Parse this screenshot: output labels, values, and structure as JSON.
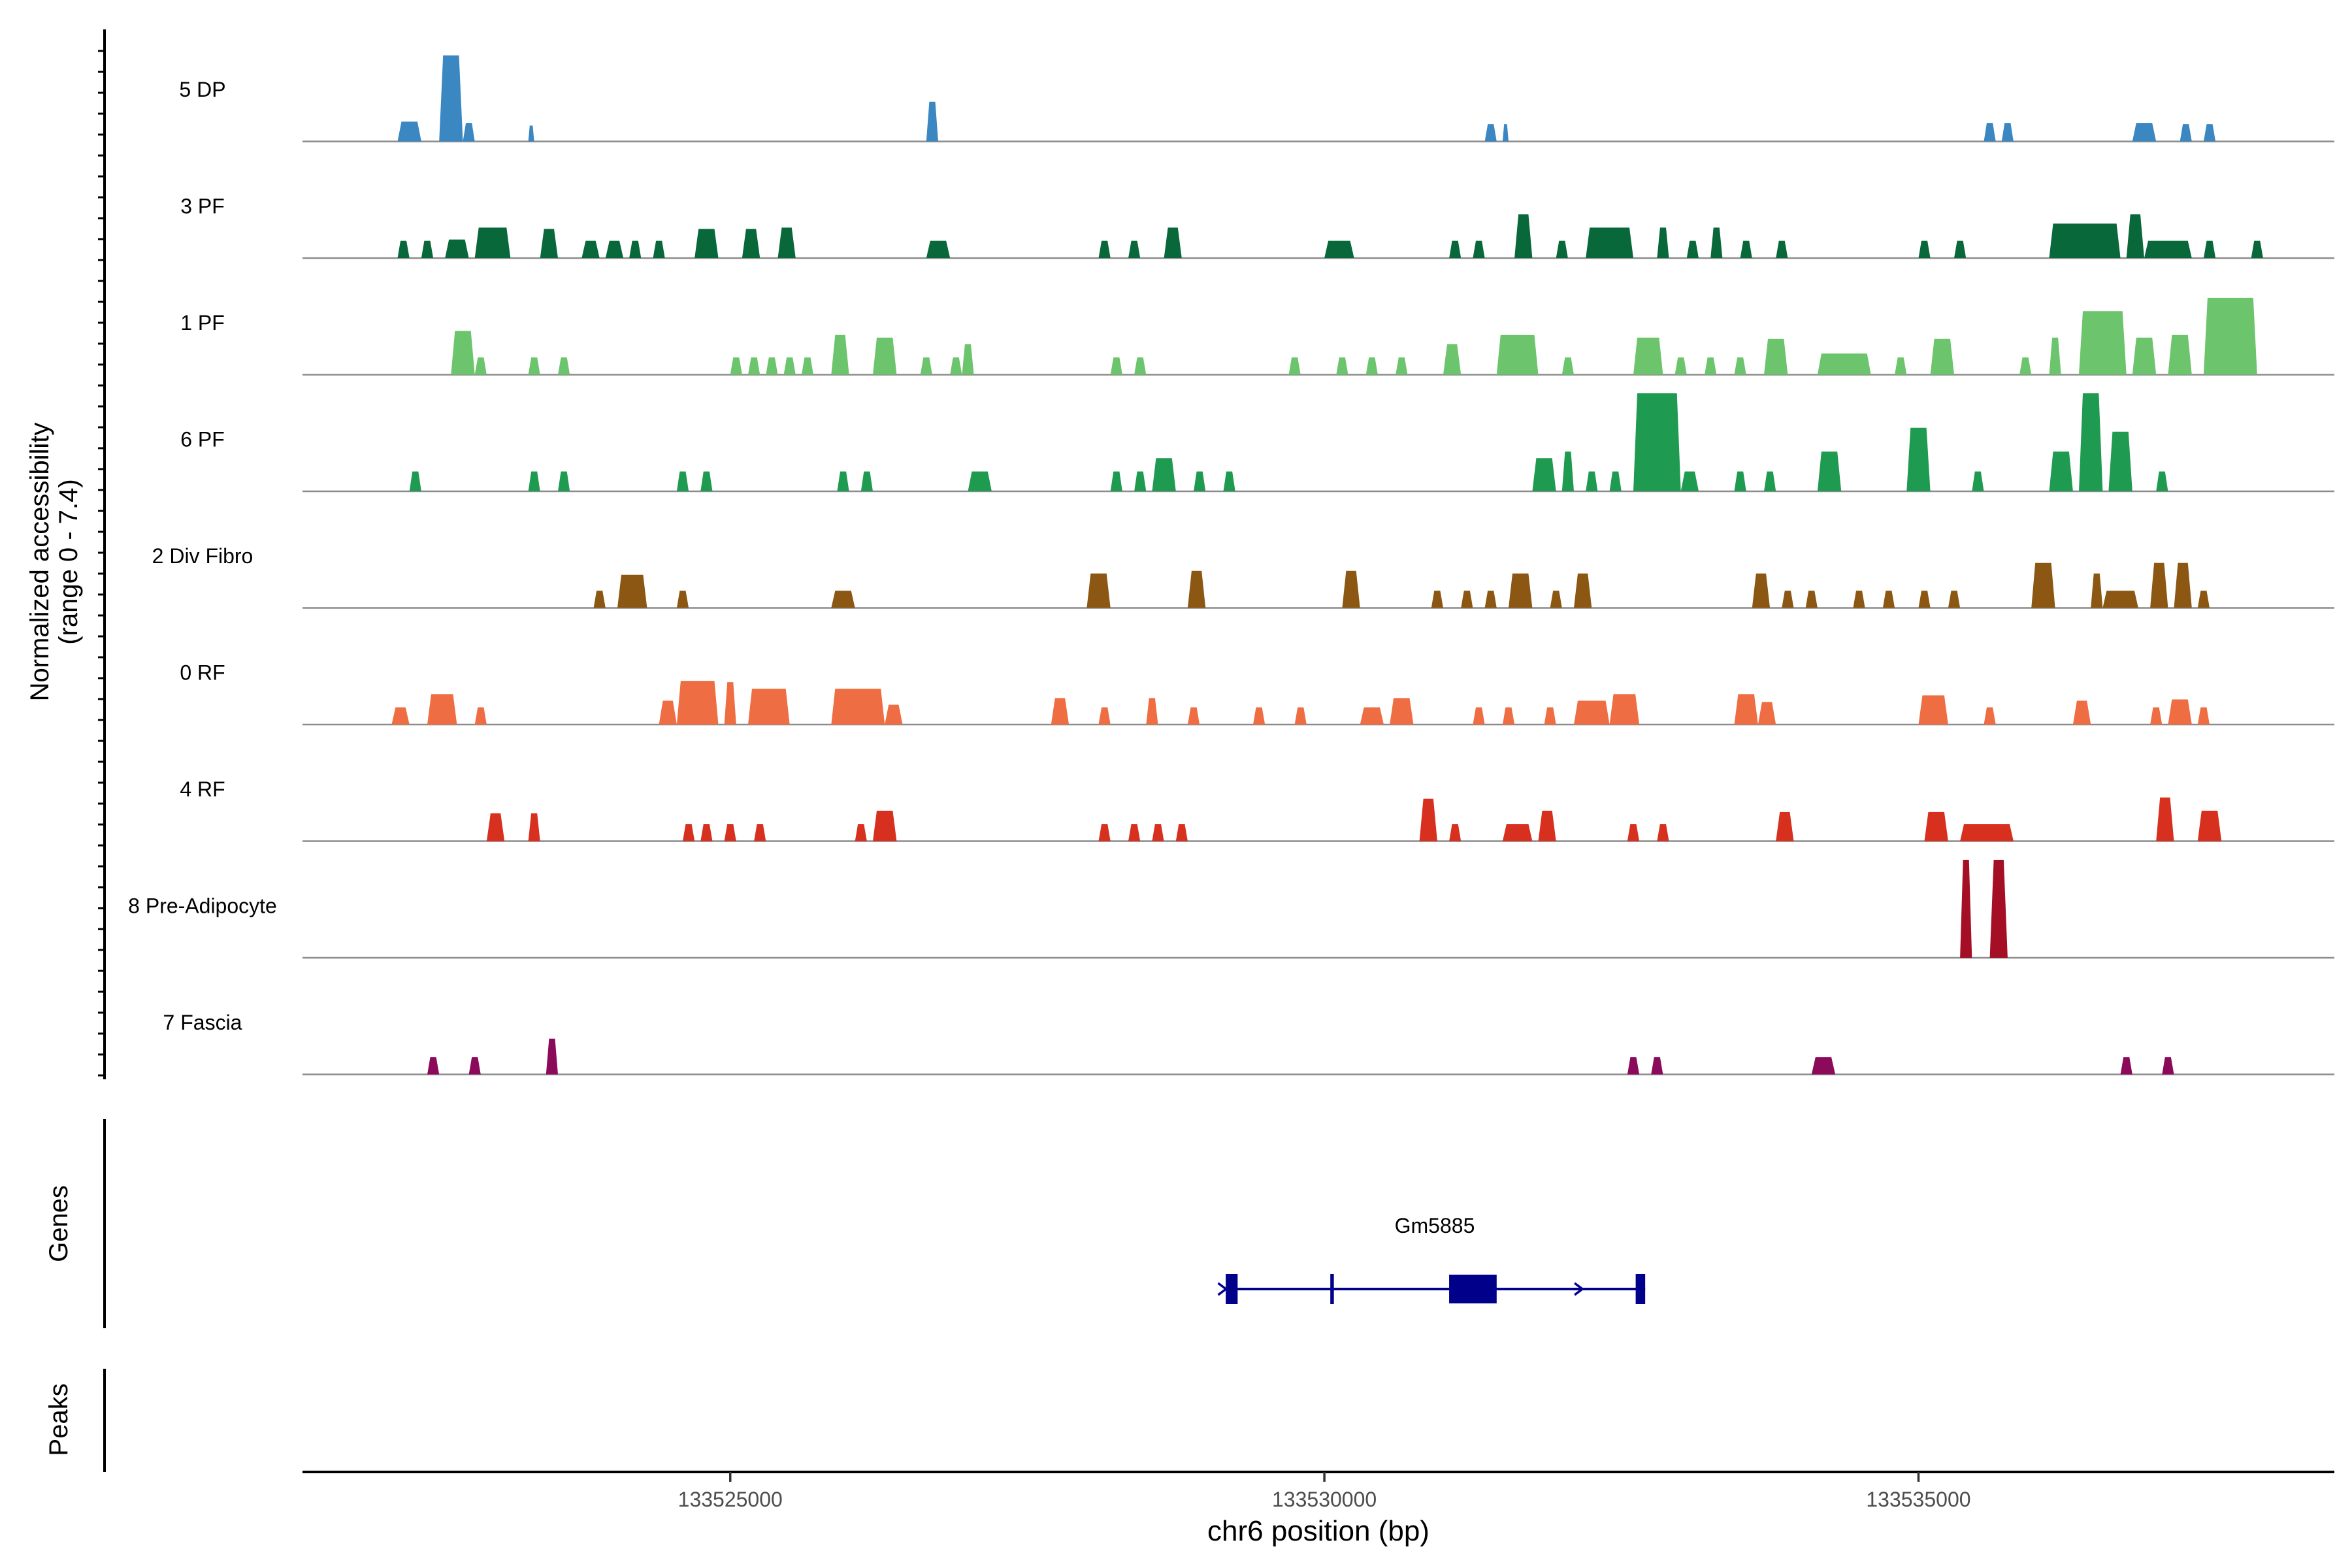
{
  "chart_data": {
    "type": "area",
    "title": "",
    "ylabel_line1": "Normalized accessibility",
    "ylabel_line2": "(range 0 - 7.4)",
    "xlabel": "chr6 position (bp)",
    "xlim": [
      133521400,
      133538500
    ],
    "x_ticks": [
      133525000,
      133530000,
      133535000
    ],
    "x_tick_labels": [
      "133525000",
      "133530000",
      "133535000"
    ],
    "ylim": [
      0,
      7.4
    ],
    "genes_label": "Genes",
    "peaks_label": "Peaks",
    "gene": {
      "name": "Gm5885",
      "color": "#00008B",
      "start": 133529170,
      "end": 133532700,
      "exons": [
        [
          133529170,
          133529270
        ],
        [
          133530050,
          133530080
        ],
        [
          133531050,
          133531450
        ],
        [
          133532620,
          133532700
        ]
      ],
      "arrows": [
        133529150,
        133532150
      ]
    },
    "series": [
      {
        "name": "5 DP",
        "color": "#3A87C1",
        "peaks": [
          [
            133522200,
            133522400,
            1.5
          ],
          [
            133522550,
            133522750,
            6.5
          ],
          [
            133522750,
            133522850,
            1.4
          ],
          [
            133523300,
            133523350,
            1.2
          ],
          [
            133526650,
            133526750,
            3.0
          ],
          [
            133531350,
            133531450,
            1.3
          ],
          [
            133531500,
            133531550,
            1.3
          ],
          [
            133535550,
            133535650,
            1.4
          ],
          [
            133535700,
            133535800,
            1.4
          ],
          [
            133536800,
            133537000,
            1.4
          ],
          [
            133537200,
            133537300,
            1.3
          ],
          [
            133537400,
            133537500,
            1.3
          ]
        ]
      },
      {
        "name": "3 PF",
        "color": "#08683A",
        "peaks": [
          [
            133522200,
            133522300,
            1.3
          ],
          [
            133522400,
            133522500,
            1.3
          ],
          [
            133522600,
            133522800,
            1.4
          ],
          [
            133522850,
            133523150,
            2.3
          ],
          [
            133523400,
            133523550,
            2.2
          ],
          [
            133523750,
            133523900,
            1.3
          ],
          [
            133523950,
            133524100,
            1.3
          ],
          [
            133524150,
            133524250,
            1.3
          ],
          [
            133524350,
            133524450,
            1.3
          ],
          [
            133524700,
            133524900,
            2.2
          ],
          [
            133525100,
            133525250,
            2.2
          ],
          [
            133525400,
            133525550,
            2.3
          ],
          [
            133526650,
            133526850,
            1.3
          ],
          [
            133528100,
            133528200,
            1.3
          ],
          [
            133528350,
            133528450,
            1.3
          ],
          [
            133528650,
            133528800,
            2.3
          ],
          [
            133530000,
            133530250,
            1.3
          ],
          [
            133531050,
            133531150,
            1.3
          ],
          [
            133531250,
            133531350,
            1.3
          ],
          [
            133531600,
            133531750,
            3.3
          ],
          [
            133531950,
            133532050,
            1.3
          ],
          [
            133532200,
            133532600,
            2.3
          ],
          [
            133532800,
            133532900,
            2.3
          ],
          [
            133533050,
            133533150,
            1.3
          ],
          [
            133533250,
            133533350,
            2.3
          ],
          [
            133533500,
            133533600,
            1.3
          ],
          [
            133533800,
            133533900,
            1.3
          ],
          [
            133535000,
            133535100,
            1.3
          ],
          [
            133535300,
            133535400,
            1.3
          ],
          [
            133536100,
            133536700,
            2.6
          ],
          [
            133536750,
            133536900,
            3.3
          ],
          [
            133536900,
            133537300,
            1.3
          ],
          [
            133537400,
            133537500,
            1.3
          ],
          [
            133537800,
            133537900,
            1.3
          ]
        ]
      },
      {
        "name": "1 PF",
        "color": "#6CC46C",
        "peaks": [
          [
            133522650,
            133522850,
            3.3
          ],
          [
            133522850,
            133522950,
            1.3
          ],
          [
            133523300,
            133523400,
            1.3
          ],
          [
            133523550,
            133523650,
            1.3
          ],
          [
            133525000,
            133525100,
            1.3
          ],
          [
            133525150,
            133525250,
            1.3
          ],
          [
            133525300,
            133525400,
            1.3
          ],
          [
            133525450,
            133525550,
            1.3
          ],
          [
            133525600,
            133525700,
            1.3
          ],
          [
            133525850,
            133526000,
            3.0
          ],
          [
            133526200,
            133526400,
            2.8
          ],
          [
            133526600,
            133526700,
            1.3
          ],
          [
            133526850,
            133526950,
            1.3
          ],
          [
            133526950,
            133527050,
            2.3
          ],
          [
            133528200,
            133528300,
            1.3
          ],
          [
            133528400,
            133528500,
            1.3
          ],
          [
            133529700,
            133529800,
            1.3
          ],
          [
            133530100,
            133530200,
            1.3
          ],
          [
            133530350,
            133530450,
            1.3
          ],
          [
            133530600,
            133530700,
            1.3
          ],
          [
            133531000,
            133531150,
            2.3
          ],
          [
            133531450,
            133531800,
            3.0
          ],
          [
            133532000,
            133532100,
            1.3
          ],
          [
            133532600,
            133532850,
            2.8
          ],
          [
            133532950,
            133533050,
            1.3
          ],
          [
            133533200,
            133533300,
            1.3
          ],
          [
            133533450,
            133533550,
            1.3
          ],
          [
            133533700,
            133533900,
            2.7
          ],
          [
            133534150,
            133534600,
            1.6
          ],
          [
            133534800,
            133534900,
            1.3
          ],
          [
            133535100,
            133535300,
            2.7
          ],
          [
            133535850,
            133535950,
            1.3
          ],
          [
            133536100,
            133536200,
            2.8
          ],
          [
            133536350,
            133536750,
            4.8
          ],
          [
            133536800,
            133537000,
            2.8
          ],
          [
            133537100,
            133537300,
            3.0
          ],
          [
            133537400,
            133537850,
            5.8
          ]
        ]
      },
      {
        "name": "6 PF",
        "color": "#1E9B50",
        "peaks": [
          [
            133522300,
            133522400,
            1.5
          ],
          [
            133523300,
            133523400,
            1.5
          ],
          [
            133523550,
            133523650,
            1.5
          ],
          [
            133524550,
            133524650,
            1.5
          ],
          [
            133524750,
            133524850,
            1.5
          ],
          [
            133525900,
            133526000,
            1.5
          ],
          [
            133526100,
            133526200,
            1.5
          ],
          [
            133527000,
            133527200,
            1.5
          ],
          [
            133528200,
            133528300,
            1.5
          ],
          [
            133528400,
            133528500,
            1.5
          ],
          [
            133528550,
            133528750,
            2.5
          ],
          [
            133528900,
            133529000,
            1.5
          ],
          [
            133529150,
            133529250,
            1.5
          ],
          [
            133531750,
            133531950,
            2.5
          ],
          [
            133532000,
            133532100,
            3.0
          ],
          [
            133532200,
            133532300,
            1.5
          ],
          [
            133532400,
            133532500,
            1.5
          ],
          [
            133532600,
            133533000,
            7.4
          ],
          [
            133533000,
            133533150,
            1.5
          ],
          [
            133533450,
            133533550,
            1.5
          ],
          [
            133533700,
            133533800,
            1.5
          ],
          [
            133534150,
            133534350,
            3.0
          ],
          [
            133534900,
            133535100,
            4.8
          ],
          [
            133535450,
            133535550,
            1.5
          ],
          [
            133536100,
            133536300,
            3.0
          ],
          [
            133536350,
            133536550,
            7.4
          ],
          [
            133536600,
            133536800,
            4.5
          ],
          [
            133537000,
            133537100,
            1.5
          ]
        ]
      },
      {
        "name": "2 Div Fibro",
        "color": "#8B5713",
        "peaks": [
          [
            133523850,
            133523950,
            1.3
          ],
          [
            133524050,
            133524300,
            2.5
          ],
          [
            133524550,
            133524650,
            1.3
          ],
          [
            133525850,
            133526050,
            1.3
          ],
          [
            133528000,
            133528200,
            2.6
          ],
          [
            133528850,
            133529000,
            2.8
          ],
          [
            133530150,
            133530300,
            2.8
          ],
          [
            133530900,
            133531000,
            1.3
          ],
          [
            133531150,
            133531250,
            1.3
          ],
          [
            133531350,
            133531450,
            1.3
          ],
          [
            133531550,
            133531750,
            2.6
          ],
          [
            133531900,
            133532000,
            1.3
          ],
          [
            133532100,
            133532250,
            2.6
          ],
          [
            133533600,
            133533750,
            2.6
          ],
          [
            133533850,
            133533950,
            1.3
          ],
          [
            133534050,
            133534150,
            1.3
          ],
          [
            133534450,
            133534550,
            1.3
          ],
          [
            133534700,
            133534800,
            1.3
          ],
          [
            133535000,
            133535100,
            1.3
          ],
          [
            133535250,
            133535350,
            1.3
          ],
          [
            133535950,
            133536150,
            3.4
          ],
          [
            133536450,
            133536550,
            2.6
          ],
          [
            133536550,
            133536850,
            1.3
          ],
          [
            133536950,
            133537100,
            3.4
          ],
          [
            133537150,
            133537300,
            3.4
          ],
          [
            133537350,
            133537450,
            1.3
          ]
        ]
      },
      {
        "name": "0 RF",
        "color": "#EF6D42",
        "peaks": [
          [
            133522150,
            133522300,
            1.3
          ],
          [
            133522450,
            133522700,
            2.3
          ],
          [
            133522850,
            133522950,
            1.3
          ],
          [
            133524400,
            133524550,
            1.8
          ],
          [
            133524550,
            133524900,
            3.3
          ],
          [
            133524950,
            133525050,
            3.2
          ],
          [
            133525150,
            133525500,
            2.7
          ],
          [
            133525850,
            133526300,
            2.7
          ],
          [
            133526300,
            133526450,
            1.5
          ],
          [
            133527700,
            133527850,
            2.0
          ],
          [
            133528100,
            133528200,
            1.3
          ],
          [
            133528500,
            133528600,
            2.0
          ],
          [
            133528850,
            133528950,
            1.3
          ],
          [
            133529400,
            133529500,
            1.3
          ],
          [
            133529750,
            133529850,
            1.3
          ],
          [
            133530300,
            133530500,
            1.3
          ],
          [
            133530550,
            133530750,
            2.0
          ],
          [
            133531250,
            133531350,
            1.3
          ],
          [
            133531500,
            133531600,
            1.3
          ],
          [
            133531850,
            133531950,
            1.3
          ],
          [
            133532100,
            133532400,
            1.8
          ],
          [
            133532400,
            133532650,
            2.3
          ],
          [
            133533450,
            133533650,
            2.3
          ],
          [
            133533650,
            133533800,
            1.7
          ],
          [
            133535000,
            133535250,
            2.2
          ],
          [
            133535550,
            133535650,
            1.3
          ],
          [
            133536300,
            133536450,
            1.8
          ],
          [
            133536950,
            133537050,
            1.3
          ],
          [
            133537100,
            133537300,
            1.9
          ],
          [
            133537350,
            133537450,
            1.3
          ]
        ]
      },
      {
        "name": "4 RF",
        "color": "#D7301F",
        "peaks": [
          [
            133522950,
            133523100,
            2.1
          ],
          [
            133523300,
            133523400,
            2.1
          ],
          [
            133524600,
            133524700,
            1.3
          ],
          [
            133524750,
            133524850,
            1.3
          ],
          [
            133524950,
            133525050,
            1.3
          ],
          [
            133525200,
            133525300,
            1.3
          ],
          [
            133526050,
            133526150,
            1.3
          ],
          [
            133526200,
            133526400,
            2.3
          ],
          [
            133528100,
            133528200,
            1.3
          ],
          [
            133528350,
            133528450,
            1.3
          ],
          [
            133528550,
            133528650,
            1.3
          ],
          [
            133528750,
            133528850,
            1.3
          ],
          [
            133530800,
            133530950,
            3.2
          ],
          [
            133531050,
            133531150,
            1.3
          ],
          [
            133531500,
            133531750,
            1.3
          ],
          [
            133531800,
            133531950,
            2.3
          ],
          [
            133532550,
            133532650,
            1.3
          ],
          [
            133532800,
            133532900,
            1.3
          ],
          [
            133533800,
            133533950,
            2.2
          ],
          [
            133535050,
            133535250,
            2.2
          ],
          [
            133535350,
            133535800,
            1.3
          ],
          [
            133537000,
            133537150,
            3.3
          ],
          [
            133537350,
            133537550,
            2.3
          ]
        ]
      },
      {
        "name": "8 Pre-Adipocyte",
        "color": "#A50F25",
        "peaks": [
          [
            133535350,
            133535450,
            7.4
          ],
          [
            133535600,
            133535750,
            7.4
          ]
        ]
      },
      {
        "name": "7 Fascia",
        "color": "#8B0A5A",
        "peaks": [
          [
            133522450,
            133522550,
            1.3
          ],
          [
            133522800,
            133522900,
            1.3
          ],
          [
            133523450,
            133523550,
            2.7
          ],
          [
            133532550,
            133532650,
            1.3
          ],
          [
            133532750,
            133532850,
            1.3
          ],
          [
            133534100,
            133534300,
            1.3
          ],
          [
            133536700,
            133536800,
            1.3
          ],
          [
            133537050,
            133537150,
            1.3
          ]
        ]
      }
    ]
  }
}
